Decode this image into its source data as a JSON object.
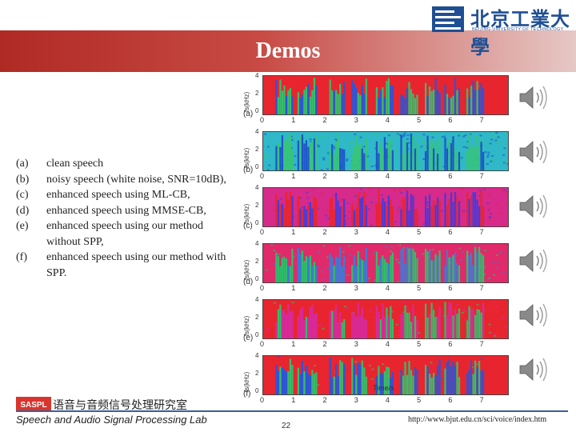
{
  "slide": {
    "title": "Demos",
    "page_number": "22",
    "url": "http://www.bjut.edu.cn/sci/voice/index.htm",
    "banner_color": "#b02a24",
    "accent_color": "#1f4f93"
  },
  "logo": {
    "chinese": "北京工業大學",
    "english": "BEIJING UNIVERSITY OF TECHNOLOGY"
  },
  "legend": [
    {
      "key": "(a)",
      "text": "clean speech"
    },
    {
      "key": "(b)",
      "text": "noisy speech (white noise, SNR=10dB),"
    },
    {
      "key": "(c)",
      "text": "enhanced speech using ML-CB,"
    },
    {
      "key": "(d)",
      "text": "enhanced speech using MMSE-CB,"
    },
    {
      "key": "(e)",
      "text": "enhanced speech using our method without SPP,"
    },
    {
      "key": "(f)",
      "text": "enhanced speech using our method with SPP."
    }
  ],
  "spectrograms": [
    {
      "panel_label": "(a)",
      "ylabel": "fs(kHz)",
      "style": "clean"
    },
    {
      "panel_label": "(b)",
      "ylabel": "fs(kHz)",
      "style": "noisy"
    },
    {
      "panel_label": "(c)",
      "ylabel": "fs(kHz)",
      "style": "mlcb"
    },
    {
      "panel_label": "(d)",
      "ylabel": "fs(kHz)",
      "style": "mmse"
    },
    {
      "panel_label": "(e)",
      "ylabel": "fs(kHz)",
      "style": "nospp"
    },
    {
      "panel_label": "(f)",
      "ylabel": "fs(kHz)",
      "style": "spp"
    }
  ],
  "y_ticks": [
    "4",
    "2",
    "0"
  ],
  "x_ticks": [
    "0",
    "1",
    "2",
    "3",
    "4",
    "5",
    "6",
    "7"
  ],
  "x_axis_label": "Time/s",
  "audio_icons": [
    "speaker-icon",
    "speaker-icon",
    "speaker-icon",
    "speaker-icon",
    "speaker-icon",
    "speaker-icon"
  ],
  "footer": {
    "lab_logo": "SASPL",
    "lab_name_cn": "语音与音频信号处理研究室",
    "lab_name_en": "Speech and Audio Signal Processing Lab"
  }
}
